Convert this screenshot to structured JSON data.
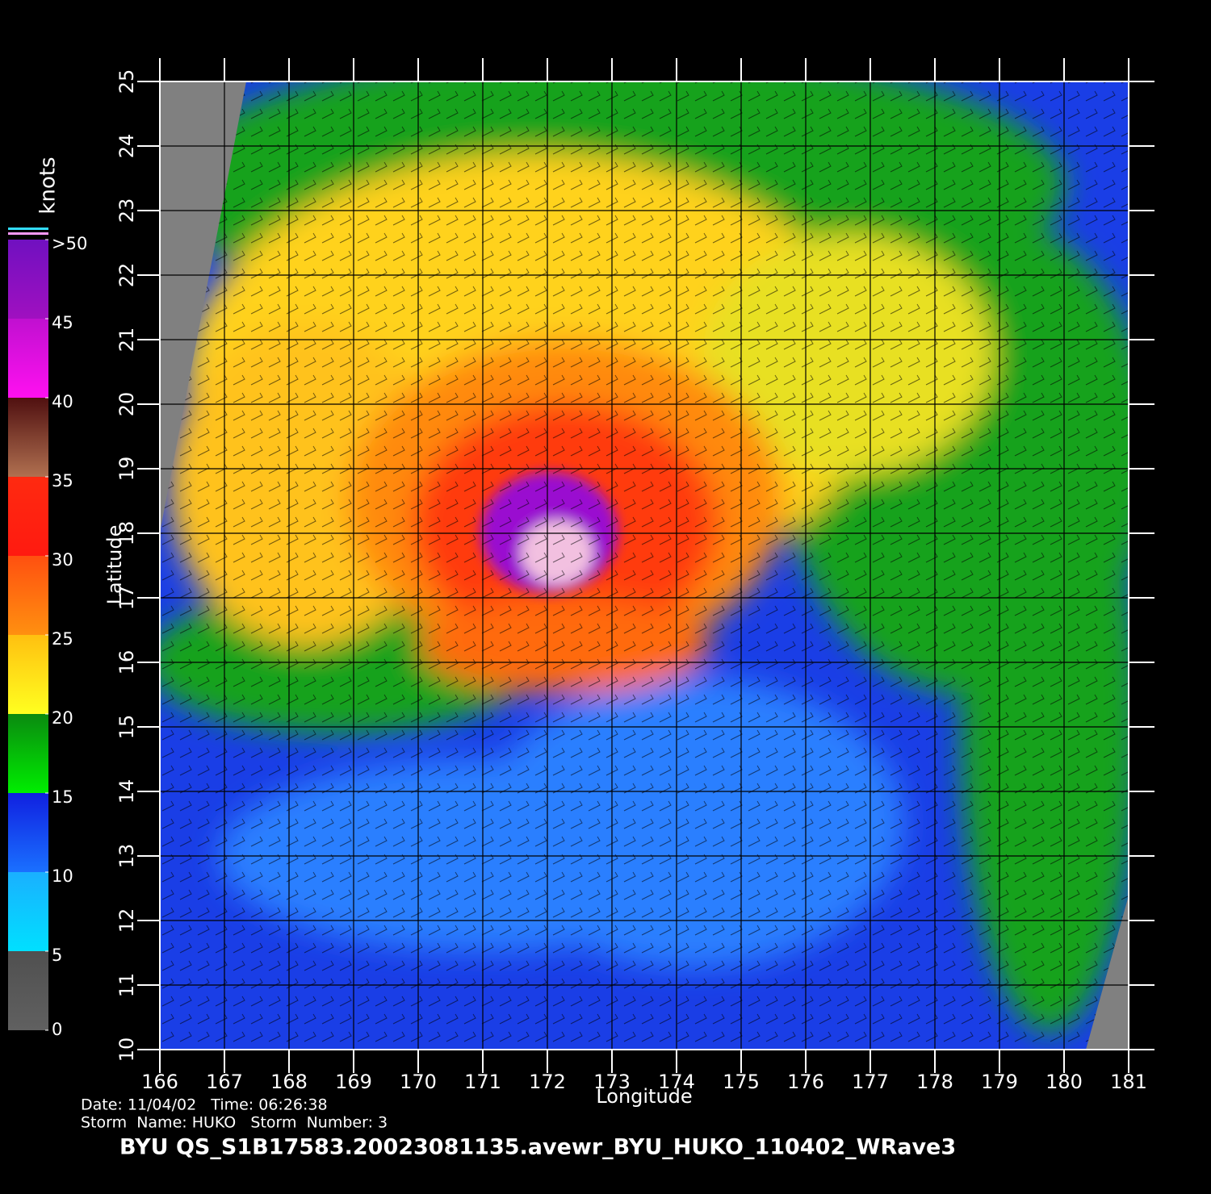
{
  "map": {
    "xlabel": "Longitude",
    "ylabel": "Latitude",
    "xlim": [
      166,
      181
    ],
    "ylim": [
      10,
      25
    ],
    "xticks": [
      166,
      167,
      168,
      169,
      170,
      171,
      172,
      173,
      174,
      175,
      176,
      177,
      178,
      179,
      180,
      181
    ],
    "yticks": [
      10,
      11,
      12,
      13,
      14,
      15,
      16,
      17,
      18,
      19,
      20,
      21,
      22,
      23,
      24,
      25
    ]
  },
  "colorbar": {
    "title": "knots",
    "lim": [
      0,
      50
    ],
    "ticks": [
      0,
      5,
      10,
      15,
      20,
      25,
      30,
      35,
      40,
      45,
      {
        "value": 50,
        "label": ">50"
      }
    ]
  },
  "footer": {
    "date_line": "Date: 11/04/02   Time: 06:26:38",
    "storm_line": "Storm  Name: HUKO   Storm  Number: 3",
    "title": "BYU  QS_S1B17583.20023081135.avewr_BYU_HUKO_110402_WRave3"
  }
}
